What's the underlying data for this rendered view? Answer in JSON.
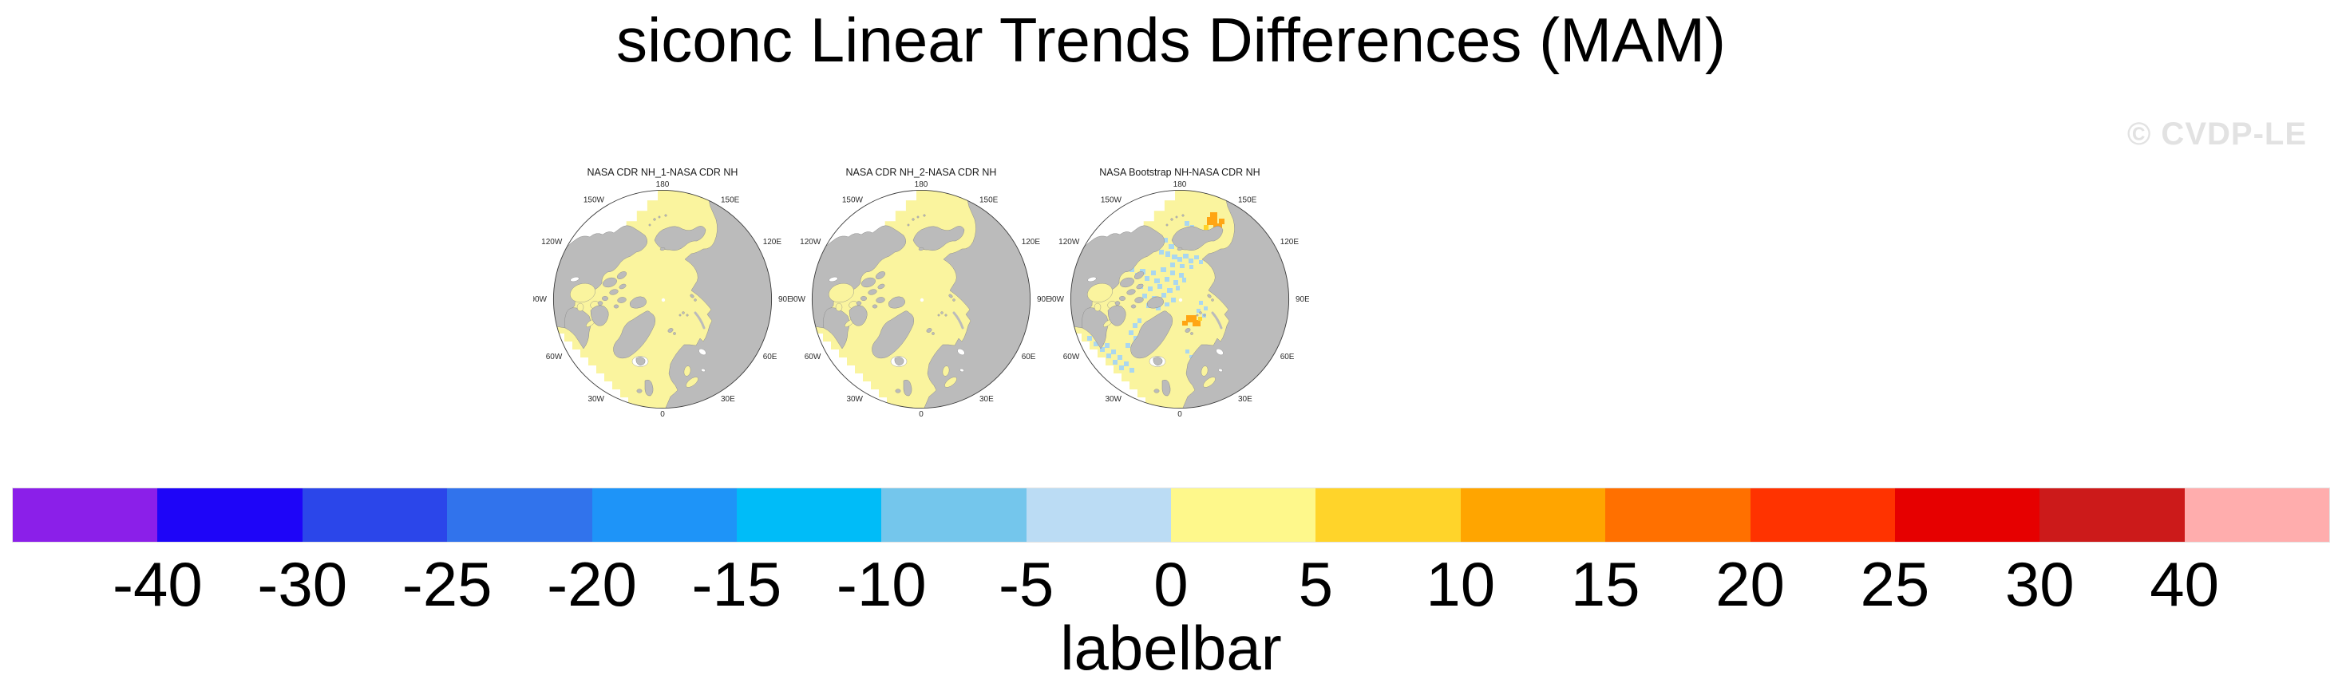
{
  "page": {
    "title": "siconc Linear Trends Differences (MAM)",
    "watermark": "© CVDP-LE",
    "background": "#FFFFFF",
    "title_color": "#000000",
    "watermark_color": "#E2E2E2"
  },
  "maps": {
    "panel_titles": [
      "NASA CDR NH_1-NASA CDR NH",
      "NASA CDR NH_2-NASA CDR NH",
      "NASA Bootstrap NH-NASA CDR NH"
    ],
    "compass_labels": [
      {
        "label": "180",
        "angle": 0
      },
      {
        "label": "150E",
        "angle": 30
      },
      {
        "label": "120E",
        "angle": 60
      },
      {
        "label": "90E",
        "angle": 90
      },
      {
        "label": "60E",
        "angle": 120
      },
      {
        "label": "30E",
        "angle": 150
      },
      {
        "label": "0",
        "angle": 180
      },
      {
        "label": "30W",
        "angle": 210
      },
      {
        "label": "60W",
        "angle": 240
      },
      {
        "label": "90W",
        "angle": 270
      },
      {
        "label": "120W",
        "angle": 300
      },
      {
        "label": "150W",
        "angle": 330
      }
    ],
    "colors": {
      "land": "#BBBBBB",
      "coast": "#8C8C8C",
      "ocean-data": "#FAF49E",
      "no-data": "#FFFFFF",
      "outline": "#3C3C3C",
      "neg-cell": "#AAD7F0",
      "pos-cell": "#FFA513",
      "gold-cell": "#FFD42A"
    }
  },
  "colorbar": {
    "caption": "labelbar",
    "tick_labels": [
      "-40",
      "-30",
      "-25",
      "-20",
      "-15",
      "-10",
      "-5",
      "0",
      "5",
      "10",
      "15",
      "20",
      "25",
      "30",
      "40"
    ],
    "segment_colors": [
      "#8B1FE9",
      "#1E05F8",
      "#2B46EA",
      "#3173EC",
      "#1E94F8",
      "#00BCF8",
      "#74C6EC",
      "#BBDCF4",
      "#FEF88B",
      "#FFD42A",
      "#FFA500",
      "#FF7000",
      "#FF3300",
      "#E60000",
      "#CC1A1A",
      "#FFADAD"
    ]
  },
  "chart_data": {
    "type": "heatmap",
    "title": "siconc Linear Trends Differences (MAM)",
    "projection": "north polar stereographic",
    "panels": [
      {
        "title": "NASA CDR NH_1-NASA CDR NH",
        "summary": "difference field nearly uniform in the 0 to 5 bin (pale yellow) over all ice-covered ocean"
      },
      {
        "title": "NASA CDR NH_2-NASA CDR NH",
        "summary": "difference field nearly uniform in the 0 to 5 bin (pale yellow) over all ice-covered ocean"
      },
      {
        "title": "NASA Bootstrap NH-NASA CDR NH",
        "summary": "mostly 0 to 5 bin with scattered -5 to 0 cells (light blue) across the central Arctic, Baffin Bay and Labrador Sea, and 10 to 15 cells (orange) near the Sea of Okhotsk and Kara Sea"
      }
    ],
    "colorbar_levels": [
      -40,
      -30,
      -25,
      -20,
      -15,
      -10,
      -5,
      0,
      5,
      10,
      15,
      20,
      25,
      30,
      40
    ],
    "colorbar_colors": [
      "#8B1FE9",
      "#1E05F8",
      "#2B46EA",
      "#3173EC",
      "#1E94F8",
      "#00BCF8",
      "#74C6EC",
      "#BBDCF4",
      "#FEF88B",
      "#FFD42A",
      "#FFA500",
      "#FF7000",
      "#FF3300",
      "#E60000",
      "#CC1A1A",
      "#FFADAD"
    ],
    "colorbar_label": "labelbar",
    "legend_position": "bottom",
    "grid": false
  }
}
